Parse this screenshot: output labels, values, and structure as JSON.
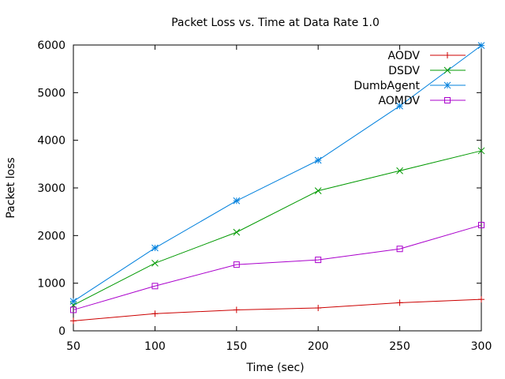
{
  "chart_data": {
    "type": "line",
    "title": "Packet Loss vs. Time at Data Rate 1.0",
    "xlabel": "Time (sec)",
    "ylabel": "Packet loss",
    "xlim": [
      50,
      300
    ],
    "ylim": [
      0,
      6000
    ],
    "x_ticks": [
      50,
      100,
      150,
      200,
      250,
      300
    ],
    "y_ticks": [
      0,
      1000,
      2000,
      3000,
      4000,
      5000,
      6000
    ],
    "grid": false,
    "legend_position": "top-right",
    "x": [
      50,
      100,
      150,
      200,
      250,
      300
    ],
    "series": [
      {
        "name": "AODV",
        "color": "#cc0000",
        "marker": "plus",
        "values": [
          210,
          360,
          440,
          480,
          590,
          660
        ]
      },
      {
        "name": "DSDV",
        "color": "#009900",
        "marker": "x",
        "values": [
          540,
          1420,
          2070,
          2940,
          3360,
          3780
        ]
      },
      {
        "name": "DumbAgent",
        "color": "#0080dd",
        "marker": "star",
        "values": [
          620,
          1740,
          2730,
          3580,
          4720,
          5990
        ]
      },
      {
        "name": "AOMDV",
        "color": "#aa00cc",
        "marker": "square",
        "values": [
          440,
          940,
          1390,
          1490,
          1720,
          2220
        ]
      }
    ]
  }
}
